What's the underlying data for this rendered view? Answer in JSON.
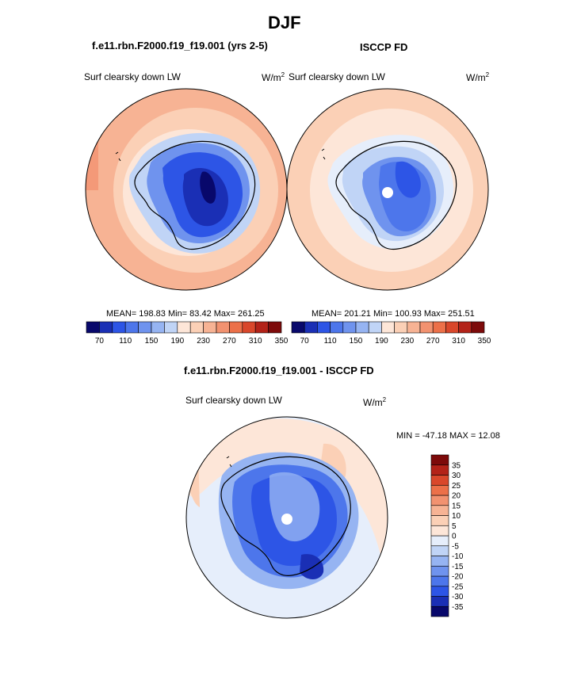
{
  "figure": {
    "season_title": "DJF",
    "bottom_title": "f.e11.rbn.F2000.f19_f19.001 - ISCCP FD"
  },
  "panels": [
    {
      "title": "f.e11.rbn.F2000.f19_f19.001 (yrs 2-5)",
      "left_label": "Surf clearsky down LW",
      "units": "W/m",
      "units_sup": "2",
      "stats": "MEAN= 198.83  Min=  83.42  Max= 261.25"
    },
    {
      "title": "ISCCP FD",
      "left_label": "Surf clearsky down LW",
      "units": "W/m",
      "units_sup": "2",
      "stats": "MEAN= 201.21  Min= 100.93  Max= 251.51"
    },
    {
      "left_label": "Surf clearsky down LW",
      "units": "W/m",
      "units_sup": "2",
      "stats": "MIN = -47.18 MAX =  12.08"
    }
  ],
  "colors": {
    "abs_scale": [
      "#08086b",
      "#1a2fb5",
      "#2d55e6",
      "#4d76eb",
      "#6f93ee",
      "#96b4f2",
      "#c0d4f6",
      "#fde6d8",
      "#fbd0b6",
      "#f7b394",
      "#f29270",
      "#ec7049",
      "#d9472b",
      "#b32218",
      "#7d0a0a"
    ],
    "diff_scale": [
      "#08086b",
      "#1a2fb5",
      "#2d55e6",
      "#4d76eb",
      "#6f93ee",
      "#96b4f2",
      "#c0d4f6",
      "#e6eefb",
      "#fde6d8",
      "#fbd0b6",
      "#f7b394",
      "#f29270",
      "#ec7049",
      "#d9472b",
      "#b32218",
      "#7d0a0a"
    ]
  },
  "chart_data": [
    {
      "type": "heatmap",
      "projection": "south polar stereographic",
      "title": "f.e11.rbn.F2000.f19_f19.001 (yrs 2-5)",
      "variable": "Surf clearsky down LW",
      "units": "W/m2",
      "mean": 198.83,
      "min": 83.42,
      "max": 261.25,
      "contour_levels": [
        70,
        90,
        110,
        130,
        150,
        170,
        190,
        210,
        230,
        250,
        270,
        290,
        310,
        330,
        350
      ],
      "colorbar_tick_labels": [
        "70",
        "110",
        "150",
        "190",
        "230",
        "270",
        "310",
        "350"
      ]
    },
    {
      "type": "heatmap",
      "projection": "south polar stereographic",
      "title": "ISCCP FD",
      "variable": "Surf clearsky down LW",
      "units": "W/m2",
      "mean": 201.21,
      "min": 100.93,
      "max": 251.51,
      "contour_levels": [
        70,
        90,
        110,
        130,
        150,
        170,
        190,
        210,
        230,
        250,
        270,
        290,
        310,
        330,
        350
      ],
      "colorbar_tick_labels": [
        "70",
        "110",
        "150",
        "190",
        "230",
        "270",
        "310",
        "350"
      ]
    },
    {
      "type": "heatmap",
      "projection": "south polar stereographic",
      "title": "f.e11.rbn.F2000.f19_f19.001 - ISCCP FD",
      "variable": "Surf clearsky down LW",
      "units": "W/m2",
      "min": -47.18,
      "max": 12.08,
      "contour_levels": [
        -35,
        -30,
        -25,
        -20,
        -15,
        -10,
        -5,
        0,
        5,
        10,
        15,
        20,
        25,
        30,
        35
      ],
      "colorbar_tick_labels": [
        "35",
        "30",
        "25",
        "20",
        "15",
        "10",
        "5",
        "0",
        "-5",
        "-10",
        "-15",
        "-20",
        "-25",
        "-30",
        "-35"
      ]
    }
  ]
}
